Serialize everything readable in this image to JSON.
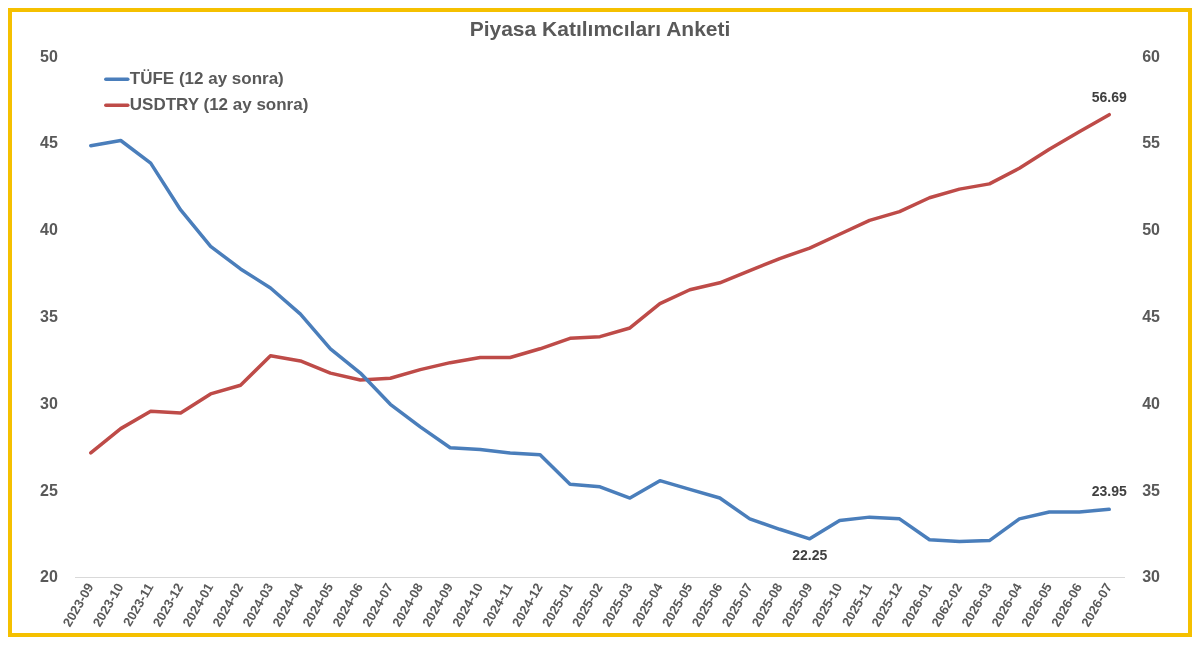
{
  "chart_data": {
    "type": "line",
    "title": "Piyasa Katılımcıları Anketi",
    "categories": [
      "2023-09",
      "2023-10",
      "2023-11",
      "2023-12",
      "2024-01",
      "2024-02",
      "2024-03",
      "2024-04",
      "2024-05",
      "2024-06",
      "2024-07",
      "2024-08",
      "2024-09",
      "2024-10",
      "2024-11",
      "2024-12",
      "2025-01",
      "2025-02",
      "2025-03",
      "2025-04",
      "2025-05",
      "2025-06",
      "2025-07",
      "2025-08",
      "2025-09",
      "2025-10",
      "2025-11",
      "2025-12",
      "2026-01",
      "2062-02",
      "2026-03",
      "2026-04",
      "2026-05",
      "2026-06",
      "2026-07"
    ],
    "series": [
      {
        "name": "TÜFE (12 ay sonra)",
        "color": "#4a7ebb",
        "values": [
          44.9,
          45.2,
          43.9,
          41.2,
          39.1,
          37.8,
          36.7,
          35.2,
          33.2,
          31.8,
          30.0,
          28.7,
          27.5,
          27.4,
          27.2,
          27.1,
          25.4,
          25.25,
          24.6,
          25.6,
          25.1,
          24.6,
          23.4,
          22.8,
          22.25,
          23.3,
          23.5,
          23.4,
          22.2,
          22.1,
          22.15,
          23.4,
          23.8,
          23.8,
          23.95
        ],
        "value_labels": [
          null,
          null,
          null,
          null,
          null,
          null,
          null,
          null,
          null,
          null,
          null,
          null,
          null,
          null,
          null,
          null,
          null,
          null,
          null,
          null,
          null,
          null,
          null,
          null,
          "22.25",
          null,
          null,
          null,
          null,
          null,
          null,
          null,
          null,
          null,
          "23.95"
        ]
      },
      {
        "name": "USDTRY (12 ay sonra)",
        "color": "#be4b48",
        "axis": "y2",
        "values": [
          37.2,
          38.6,
          39.6,
          39.5,
          40.6,
          41.1,
          42.8,
          42.5,
          41.8,
          41.4,
          41.5,
          42.0,
          42.4,
          42.7,
          42.7,
          43.2,
          43.8,
          43.9,
          44.4,
          45.8,
          46.6,
          47.0,
          47.7,
          48.4,
          49.0,
          49.8,
          50.6,
          51.1,
          51.9,
          52.4,
          52.7,
          53.6,
          54.7,
          55.7,
          56.69
        ],
        "value_labels": [
          null,
          null,
          null,
          null,
          null,
          null,
          null,
          null,
          null,
          null,
          null,
          null,
          null,
          null,
          null,
          null,
          null,
          null,
          null,
          null,
          null,
          null,
          null,
          null,
          null,
          null,
          null,
          null,
          null,
          null,
          null,
          null,
          null,
          null,
          "56.69"
        ]
      }
    ],
    "ylim": [
      20,
      50
    ],
    "yticks": [
      20,
      25,
      30,
      35,
      40,
      45,
      50
    ],
    "y2lim": [
      30,
      60
    ],
    "y2ticks": [
      30,
      35,
      40,
      45,
      50,
      55,
      60
    ],
    "grid": false,
    "legend": "top left",
    "marker": "none",
    "line_style": "solid"
  }
}
